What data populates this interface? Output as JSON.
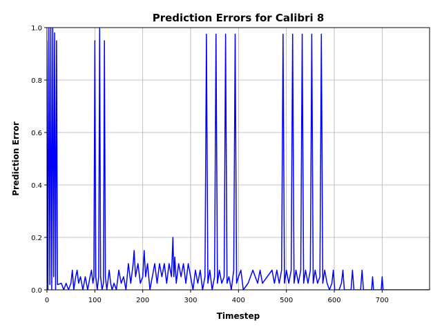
{
  "chart_data": {
    "type": "line",
    "title": "Prediction Errors for Calibri 8",
    "x_label": "Timestep",
    "y_label": "Prediction Error",
    "xlim": [
      0,
      799
    ],
    "ylim": [
      0,
      1
    ],
    "xticks": [
      0,
      100,
      200,
      300,
      400,
      500,
      600,
      700
    ],
    "yticks": [
      {
        "value": 0,
        "label": "0.0"
      },
      {
        "value": 0.2,
        "label": "0.2"
      },
      {
        "value": 0.4,
        "label": "0.4"
      },
      {
        "value": 0.6,
        "label": "0.6"
      },
      {
        "value": 0.8,
        "label": "0.8"
      },
      {
        "value": 1,
        "label": "1.0"
      }
    ],
    "grid": true,
    "x": [
      0,
      2,
      4,
      6,
      8,
      10,
      12,
      14,
      16,
      18,
      20,
      22,
      30,
      35,
      40,
      45,
      50,
      53,
      56,
      60,
      63,
      66,
      70,
      75,
      80,
      85,
      90,
      93,
      96,
      98,
      100,
      102,
      105,
      108,
      110,
      112,
      115,
      118,
      120,
      122,
      125,
      130,
      133,
      136,
      140,
      145,
      150,
      155,
      160,
      165,
      170,
      175,
      180,
      182,
      185,
      190,
      195,
      200,
      203,
      206,
      210,
      215,
      220,
      225,
      230,
      235,
      240,
      245,
      250,
      255,
      260,
      263,
      265,
      267,
      270,
      275,
      280,
      285,
      290,
      295,
      300,
      305,
      310,
      315,
      320,
      325,
      330,
      333,
      336,
      340,
      345,
      350,
      353,
      356,
      360,
      365,
      370,
      373,
      376,
      380,
      385,
      390,
      393,
      396,
      400,
      405,
      410,
      420,
      430,
      440,
      445,
      450,
      460,
      470,
      475,
      480,
      485,
      490,
      493,
      496,
      500,
      505,
      510,
      513,
      516,
      520,
      525,
      530,
      533,
      536,
      540,
      545,
      550,
      553,
      556,
      560,
      565,
      570,
      573,
      576,
      580,
      585,
      590,
      595,
      598,
      601,
      610,
      615,
      618,
      621,
      635,
      638,
      641,
      655,
      658,
      661,
      678,
      680,
      682,
      698,
      700,
      702,
      799
    ],
    "series": [
      {
        "color": "#0000ff",
        "values": [
          0.95,
          0,
          1.0,
          0.02,
          1.0,
          0,
          1.0,
          0.05,
          0.98,
          0,
          0.95,
          0.02,
          0.025,
          0,
          0.025,
          0,
          0.025,
          0.075,
          0,
          0.05,
          0.075,
          0.025,
          0.05,
          0,
          0.05,
          0,
          0.05,
          0.075,
          0.025,
          0.05,
          0.95,
          0.05,
          0,
          0.05,
          1.0,
          0.05,
          0,
          0.025,
          0.95,
          0.05,
          0,
          0.075,
          0.025,
          0,
          0.025,
          0,
          0.075,
          0.025,
          0.05,
          0,
          0.1,
          0.025,
          0.1,
          0.15,
          0.05,
          0.1,
          0.025,
          0.05,
          0.15,
          0.05,
          0.1,
          0,
          0.05,
          0.1,
          0.025,
          0.1,
          0.05,
          0.1,
          0.025,
          0.1,
          0.05,
          0.2,
          0.05,
          0.125,
          0.025,
          0.1,
          0.05,
          0.1,
          0.025,
          0.1,
          0.05,
          0,
          0.075,
          0.025,
          0.075,
          0,
          0.05,
          0.975,
          0.025,
          0.075,
          0,
          0.05,
          0.975,
          0.025,
          0.075,
          0.025,
          0.05,
          0.975,
          0.025,
          0.05,
          0,
          0.075,
          0.975,
          0.025,
          0.05,
          0.075,
          0,
          0.025,
          0.075,
          0.025,
          0.075,
          0.025,
          0.05,
          0.075,
          0.025,
          0.075,
          0.025,
          0.075,
          0.975,
          0.025,
          0.075,
          0.025,
          0.075,
          0.975,
          0.025,
          0.075,
          0.025,
          0.075,
          0.975,
          0.025,
          0.075,
          0.025,
          0.075,
          0.975,
          0.025,
          0.075,
          0.025,
          0.05,
          0.975,
          0.025,
          0.075,
          0.025,
          0,
          0.025,
          0.075,
          0,
          0,
          0.025,
          0.075,
          0,
          0,
          0.075,
          0,
          0,
          0.075,
          0,
          0,
          0.05,
          0,
          0,
          0.05,
          0,
          0
        ]
      }
    ]
  }
}
